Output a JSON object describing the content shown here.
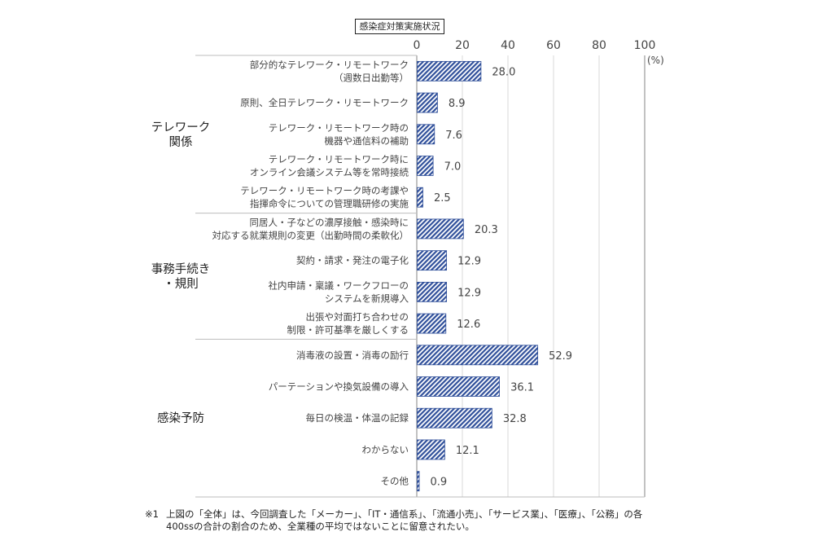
{
  "chart_data": {
    "type": "bar",
    "orientation": "horizontal",
    "title": "感染症対策実施状況",
    "xlabel": "",
    "unit_label": "(%)",
    "xlim": [
      0,
      100
    ],
    "xticks": [
      0,
      20,
      40,
      60,
      80,
      100
    ],
    "grid": true,
    "groups": [
      {
        "label": [
          "テレワーク",
          "関係"
        ],
        "start": 0,
        "end": 4
      },
      {
        "label": [
          "事務手続き",
          "・規則"
        ],
        "start": 5,
        "end": 8
      },
      {
        "label": [
          "感染予防"
        ],
        "start": 9,
        "end": 13
      }
    ],
    "categories": [
      [
        "部分的なテレワーク・リモートワーク",
        "（週数日出勤等）"
      ],
      [
        "原則、全日テレワーク・リモートワーク"
      ],
      [
        "テレワーク・リモートワーク時の",
        "機器や通信料の補助"
      ],
      [
        "テレワーク・リモートワーク時に",
        "オンライン会議システム等を常時接続"
      ],
      [
        "テレワーク・リモートワーク時の考課や",
        "指揮命令についての管理職研修の実施"
      ],
      [
        "同居人・子などの濃厚接触・感染時に",
        "対応する就業規則の変更（出勤時間の柔軟化）"
      ],
      [
        "契約・請求・発注の電子化"
      ],
      [
        "社内申請・稟議・ワークフローの",
        "システムを新規導入"
      ],
      [
        "出張や対面打ち合わせの",
        "制限・許可基準を厳しくする"
      ],
      [
        "消毒液の設置・消毒の励行"
      ],
      [
        "パーテーションや換気設備の導入"
      ],
      [
        "毎日の検温・体温の記録"
      ],
      [
        "わからない"
      ],
      [
        "その他"
      ]
    ],
    "values": [
      28.0,
      8.9,
      7.6,
      7.0,
      2.5,
      20.3,
      12.9,
      12.9,
      12.6,
      52.9,
      36.1,
      32.8,
      12.1,
      0.9
    ],
    "value_labels": [
      "28.0",
      "8.9",
      "7.6",
      "7.0",
      "2.5",
      "20.3",
      "12.9",
      "12.9",
      "12.6",
      "52.9",
      "36.1",
      "32.8",
      "12.1",
      "0.9"
    ],
    "bar_color": "#2f4f9a",
    "bar_pattern": "diagonal-hatch"
  },
  "note": {
    "mark": "※1",
    "line1": "上図の「全体」は、今回調査した「メーカー」、「IT・通信系」、「流通小売」、「サービス業」、「医療」、「公務」の各",
    "line2": "400ssの合計の割合のため、全業種の平均ではないことに留意されたい。"
  }
}
